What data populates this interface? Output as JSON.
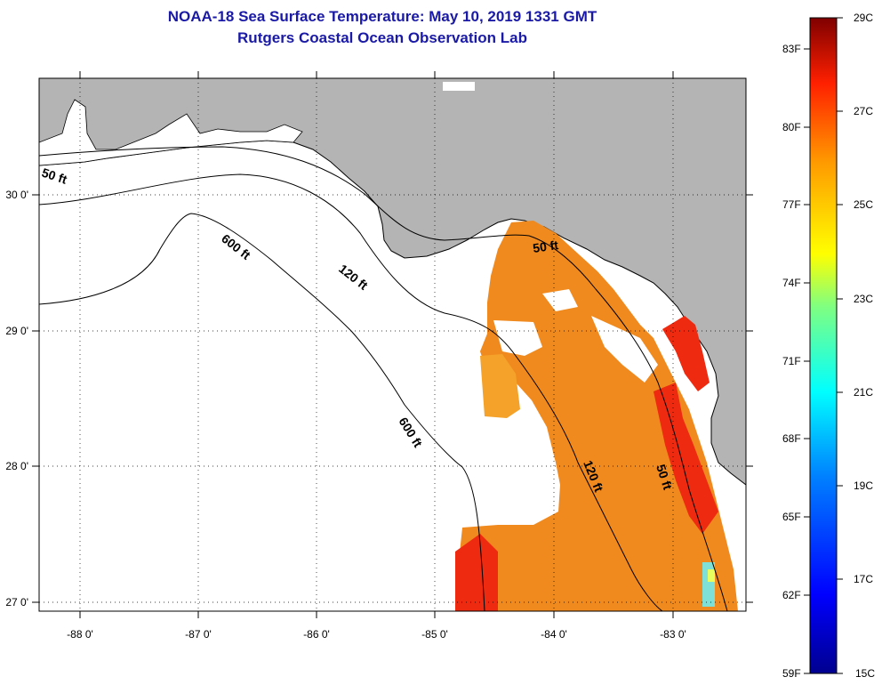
{
  "title": "NOAA-18 Sea Surface Temperature:  May 10, 2019 1331 GMT",
  "subtitle": "Rutgers Coastal Ocean Observation Lab",
  "map": {
    "lon_ticks": [
      "-88 0'",
      "-87 0'",
      "-86 0'",
      "-85 0'",
      "-84 0'",
      "-83 0'"
    ],
    "lat_ticks": [
      "30 0'",
      "29 0'",
      "28 0'",
      "27 0'"
    ],
    "contour_labels": [
      "50 ft",
      "600 ft",
      "120 ft",
      "50 ft",
      "600 ft",
      "120 ft",
      "50 ft"
    ],
    "colors": {
      "land": "#b4b4b4",
      "cloud": "#ffffff",
      "sst_warm": "#f08a1e",
      "sst_hot": "#ee2a10"
    }
  },
  "colorbar": {
    "celsius": [
      "29C",
      "27C",
      "25C",
      "23C",
      "21C",
      "19C",
      "17C",
      "15C"
    ],
    "fahrenheit": [
      "83F",
      "80F",
      "77F",
      "74F",
      "71F",
      "68F",
      "65F",
      "62F",
      "59F"
    ],
    "range_c": [
      15,
      29
    ]
  }
}
